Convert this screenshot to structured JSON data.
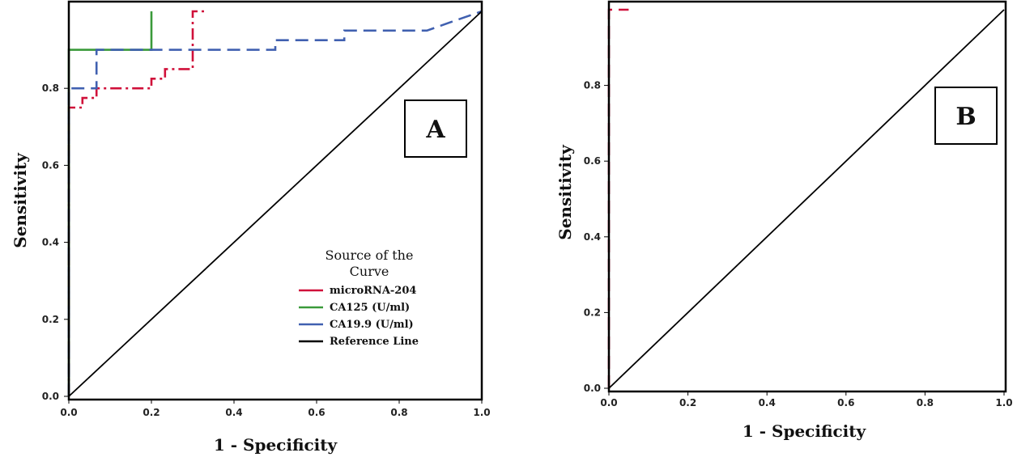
{
  "chart_data": [
    {
      "type": "line",
      "panel_label": "A",
      "xlabel": "1 - Specificity",
      "ylabel": "Sensitivity",
      "xlim": [
        0,
        1
      ],
      "ylim": [
        0,
        1
      ],
      "x_ticks": [
        "0.0",
        "0.2",
        "0.4",
        "0.6",
        "0.8",
        "1.0"
      ],
      "y_ticks": [
        "0.0",
        "0.2",
        "0.4",
        "0.6",
        "0.8"
      ],
      "legend": {
        "title": "Source of the Curve",
        "placement": "bottom-right",
        "entries": [
          "microRNA-204",
          "CA125 (U/ml)",
          "CA19.9 (U/ml)",
          "Reference Line"
        ]
      },
      "series": [
        {
          "name": "microRNA-204",
          "color": "#d0103a",
          "style": "dash-dot",
          "x": [
            0,
            0,
            0,
            0.033,
            0.033,
            0.067,
            0.067,
            0.2,
            0.2,
            0.233,
            0.233,
            0.3,
            0.3,
            0.333
          ],
          "y": [
            0,
            0.75,
            0.75,
            0.75,
            0.775,
            0.775,
            0.8,
            0.8,
            0.825,
            0.825,
            0.85,
            0.85,
            1.0,
            1.0
          ]
        },
        {
          "name": "CA125 (U/ml)",
          "color": "#3a9a3a",
          "style": "solid",
          "x": [
            0,
            0,
            0,
            0.2,
            0.2
          ],
          "y": [
            0,
            0.9,
            0.9,
            0.9,
            1.0
          ]
        },
        {
          "name": "CA19.9 (U/ml)",
          "color": "#4060b0",
          "style": "dash",
          "x": [
            0,
            0,
            0.067,
            0.067,
            0.5,
            0.5,
            0.667,
            0.667,
            0.867,
            0.933,
            1.0
          ],
          "y": [
            0,
            0.8,
            0.8,
            0.9,
            0.9,
            0.925,
            0.925,
            0.95,
            0.95,
            0.975,
            1.0
          ]
        },
        {
          "name": "Reference Line",
          "color": "#000000",
          "style": "solid",
          "x": [
            0,
            1
          ],
          "y": [
            0,
            1
          ]
        }
      ]
    },
    {
      "type": "line",
      "panel_label": "B",
      "xlabel": "1 - Specificity",
      "ylabel": "Sensitivity",
      "xlim": [
        0,
        1
      ],
      "ylim": [
        0,
        1
      ],
      "x_ticks": [
        "0.0",
        "0.2",
        "0.4",
        "0.6",
        "0.8",
        "1.0"
      ],
      "y_ticks": [
        "0.0",
        "0.2",
        "0.4",
        "0.6",
        "0.8"
      ],
      "series": [
        {
          "color": "#d0103a",
          "style": "dash",
          "x": [
            0,
            0,
            0.05
          ],
          "y": [
            0,
            1.0,
            1.0
          ]
        },
        {
          "color": "#000000",
          "style": "solid",
          "x": [
            0,
            1
          ],
          "y": [
            0,
            1
          ]
        }
      ]
    }
  ]
}
